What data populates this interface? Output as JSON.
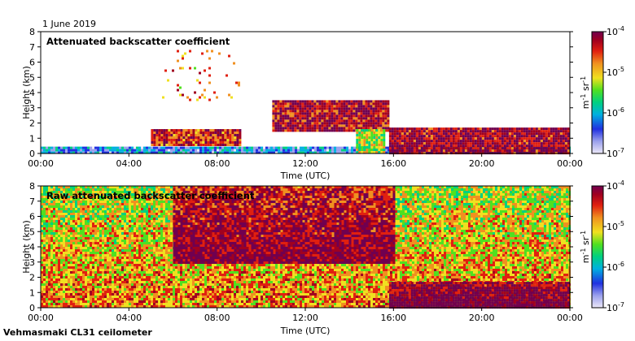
{
  "date_label": "1 June 2019",
  "instrument_label": "Vehmasmaki CL31 ceilometer",
  "colors": {
    "ramp": [
      "#ece8f8",
      "#9aa0ec",
      "#2030e0",
      "#00b0e0",
      "#00d080",
      "#50e020",
      "#f0e020",
      "#f09020",
      "#e02010",
      "#a00020",
      "#700050"
    ]
  },
  "chart_data": [
    {
      "type": "heatmap",
      "title": "Attenuated backscatter coefficient",
      "xlabel": "Time (UTC)",
      "ylabel": "Height (km)",
      "x_ticks": [
        "00:00",
        "04:00",
        "08:00",
        "12:00",
        "16:00",
        "20:00",
        "00:00"
      ],
      "x_range_hours": [
        0,
        24
      ],
      "y_ticks": [
        "0",
        "1",
        "2",
        "3",
        "4",
        "5",
        "6",
        "7",
        "8"
      ],
      "ylim_km": [
        0,
        8
      ],
      "colorbar": {
        "scale": "log",
        "range": [
          1e-07,
          0.0001
        ],
        "tick_mantissa": [
          "10",
          "10",
          "10",
          "10"
        ],
        "tick_exponent": [
          "-7",
          "-6",
          "-5",
          "-4"
        ],
        "unit_main": "m",
        "unit_exp1": "-1",
        "unit_sr": " sr",
        "unit_exp2": "-1"
      },
      "features": [
        {
          "name": "boundary layer",
          "t_start": 0,
          "t_end": 24,
          "height_km": [
            0,
            0.45
          ],
          "level": 0.25
        },
        {
          "name": "aerosol layer rising",
          "t_start": 5.0,
          "t_end": 9.0,
          "height_km": [
            0.6,
            1.6
          ],
          "level": 0.8
        },
        {
          "name": "high scattered echoes",
          "t_start": 5.5,
          "t_end": 9.0,
          "height_km": [
            3.5,
            6.8
          ],
          "level": 0.7
        },
        {
          "name": "mid cloud",
          "t_start": 10.5,
          "t_end": 15.8,
          "height_km": [
            1.5,
            3.5
          ],
          "level": 0.85
        },
        {
          "name": "low cloud descending",
          "t_start": 15.8,
          "t_end": 23.9,
          "height_km": [
            0.05,
            1.7
          ],
          "level": 0.88
        },
        {
          "name": "precip column",
          "t_start": 14.3,
          "t_end": 15.6,
          "height_km": [
            0,
            1.6
          ],
          "level": 0.55
        }
      ]
    },
    {
      "type": "heatmap",
      "title": "Raw attenuated backscatter coefficient",
      "xlabel": "Time (UTC)",
      "ylabel": "Height (km)",
      "x_ticks": [
        "00:00",
        "04:00",
        "08:00",
        "12:00",
        "16:00",
        "20:00",
        "00:00"
      ],
      "x_range_hours": [
        0,
        24
      ],
      "y_ticks": [
        "0",
        "1",
        "2",
        "3",
        "4",
        "5",
        "6",
        "7",
        "8"
      ],
      "ylim_km": [
        0,
        8
      ],
      "colorbar": {
        "scale": "log",
        "range": [
          1e-07,
          0.0001
        ],
        "tick_mantissa": [
          "10",
          "10",
          "10",
          "10"
        ],
        "tick_exponent": [
          "-7",
          "-6",
          "-5",
          "-4"
        ],
        "unit_main": "m",
        "unit_exp1": "-1",
        "unit_sr": " sr",
        "unit_exp2": "-1"
      },
      "features": [
        {
          "name": "noisy background",
          "t_start": 0,
          "t_end": 24,
          "height_km": [
            0,
            8
          ],
          "level": 0.55
        },
        {
          "name": "daytime noise",
          "t_start": 6,
          "t_end": 16,
          "height_km": [
            3,
            8
          ],
          "level": 0.8
        },
        {
          "name": "low cloud descending",
          "t_start": 15.8,
          "t_end": 23.9,
          "height_km": [
            0.05,
            1.7
          ],
          "level": 0.88
        }
      ]
    }
  ]
}
